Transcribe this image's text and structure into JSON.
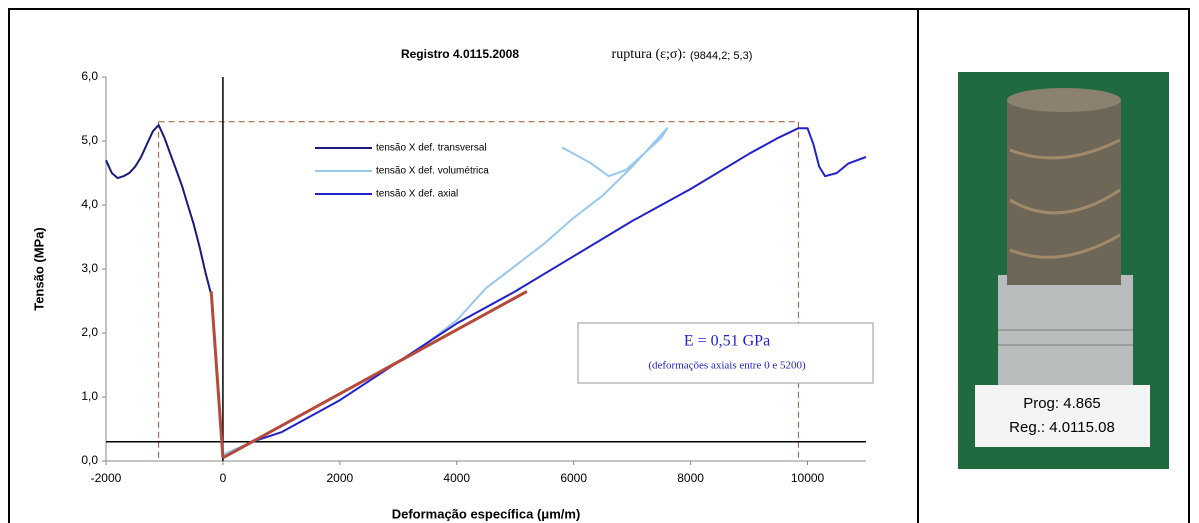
{
  "chart_data": {
    "type": "line",
    "title": "Registro 4.0115.2008",
    "rupture_text": "ruptura (ε;σ):",
    "rupture_label": "(9844,2; 5,3)",
    "rupture_strain": 9844.2,
    "rupture_stress": 5.3,
    "transversal_peak_strain": -1100,
    "x_label": "Deformação específica (μm/m)",
    "y_label": "Tensão (MPa)",
    "xlim": [
      -2000,
      11000
    ],
    "xticks": [
      -2000,
      0,
      2000,
      4000,
      6000,
      8000,
      10000
    ],
    "ylim": [
      0,
      6
    ],
    "yticks": [
      {
        "value": 0,
        "label": "0,0"
      },
      {
        "value": 1,
        "label": "1,0"
      },
      {
        "value": 2,
        "label": "2,0"
      },
      {
        "value": 3,
        "label": "3,0"
      },
      {
        "value": 4,
        "label": "4,0"
      },
      {
        "value": 5,
        "label": "5,0"
      },
      {
        "value": 6,
        "label": "6,0"
      }
    ],
    "reference_y": 0.3,
    "reference_x": 0,
    "series": [
      {
        "name": "tensão X def. transversal",
        "color": "#1a1a7a",
        "x": [
          -2000,
          -1900,
          -1800,
          -1700,
          -1600,
          -1500,
          -1400,
          -1300,
          -1200,
          -1100,
          -1000,
          -900,
          -800,
          -700,
          -600,
          -500,
          -400,
          -300,
          -200,
          -100,
          0
        ],
        "values": [
          4.7,
          4.5,
          4.42,
          4.45,
          4.5,
          4.6,
          4.75,
          4.95,
          5.15,
          5.25,
          5.05,
          4.8,
          4.55,
          4.3,
          4.0,
          3.7,
          3.35,
          2.95,
          2.6,
          1.4,
          0.1
        ]
      },
      {
        "name": "tensão X def. volumétrica",
        "color": "#99c8ef",
        "x": [
          0,
          500,
          1000,
          1500,
          2000,
          2500,
          3000,
          3500,
          4000,
          4500,
          5000,
          5500,
          6000,
          6500,
          7000,
          7300,
          7600,
          7500,
          7200,
          6900,
          6600,
          6300,
          6000,
          5800
        ],
        "values": [
          0.1,
          0.3,
          0.55,
          0.8,
          1.05,
          1.3,
          1.55,
          1.85,
          2.2,
          2.7,
          3.05,
          3.4,
          3.8,
          4.15,
          4.6,
          4.9,
          5.2,
          5.05,
          4.8,
          4.55,
          4.45,
          4.65,
          4.8,
          4.9
        ]
      },
      {
        "name": "tensão X def. axial",
        "color": "#2222cc",
        "x": [
          0,
          500,
          1000,
          2000,
          3000,
          4000,
          5000,
          6000,
          7000,
          8000,
          9000,
          9500,
          9844,
          10000,
          10100,
          10200,
          10300,
          10500,
          10700,
          11000
        ],
        "values": [
          0.05,
          0.3,
          0.45,
          0.95,
          1.55,
          2.15,
          2.65,
          3.2,
          3.75,
          4.25,
          4.8,
          5.05,
          5.2,
          5.2,
          4.95,
          4.6,
          4.45,
          4.5,
          4.65,
          4.75
        ]
      }
    ],
    "fit_lines": [
      {
        "color": "#b5493a",
        "x": [
          -200,
          0
        ],
        "values": [
          2.65,
          0.05
        ]
      },
      {
        "color": "#b5493a",
        "x": [
          0,
          5200
        ],
        "values": [
          0.05,
          2.65
        ]
      }
    ],
    "modulus_text": "E = 0,51 GPa",
    "modulus_note": "(deformações axiais entre 0 e 5200)"
  },
  "photo": {
    "label_lines": [
      "Prog: 4.865",
      "Reg.: 4.0115.08"
    ]
  }
}
